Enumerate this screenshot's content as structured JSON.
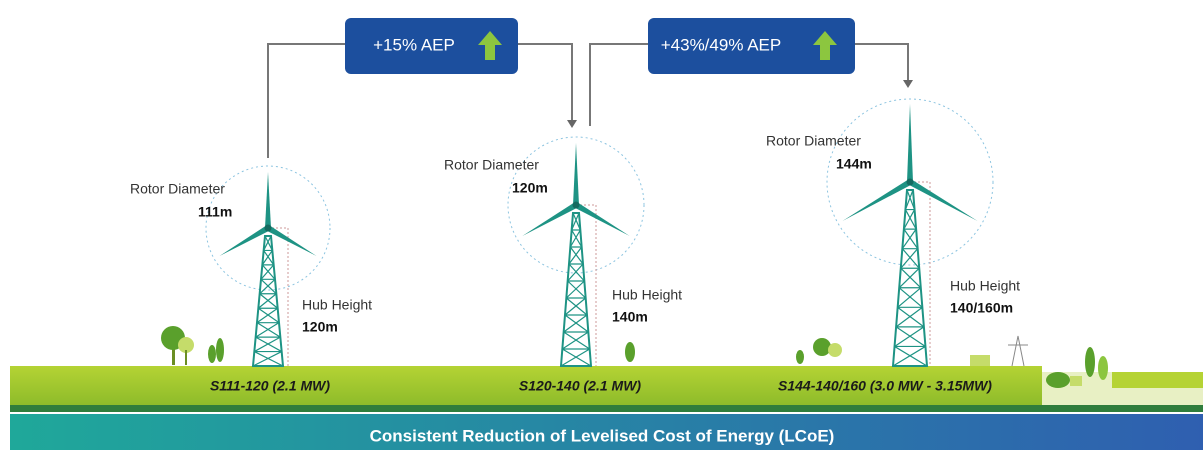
{
  "callouts": [
    {
      "label": "+15% AEP"
    },
    {
      "label": "+43%/49% AEP"
    }
  ],
  "turbines": [
    {
      "rotor_label": "Rotor Diameter",
      "rotor_value": "111m",
      "hub_label": "Hub Height",
      "hub_value": "120m",
      "model": "S111-120 (2.1 MW)"
    },
    {
      "rotor_label": "Rotor Diameter",
      "rotor_value": "120m",
      "hub_label": "Hub Height",
      "hub_value": "140m",
      "model": "S120-140 (2.1 MW)"
    },
    {
      "rotor_label": "Rotor Diameter",
      "rotor_value": "144m",
      "hub_label": "Hub Height",
      "hub_value": "140/160m",
      "model": "S144-140/160 (3.0 MW - 3.15MW)"
    }
  ],
  "footer": "Consistent Reduction of Levelised Cost of Energy (LCoE)"
}
